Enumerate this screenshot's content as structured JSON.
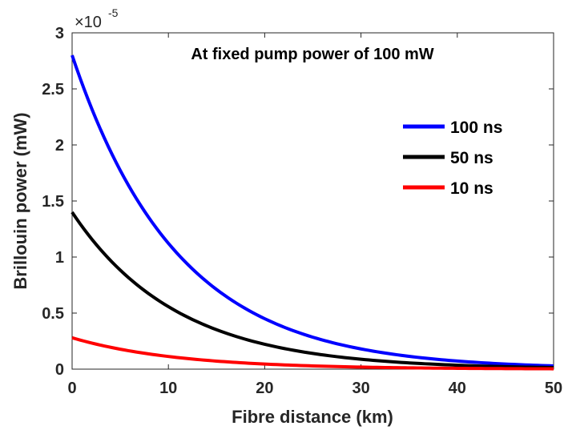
{
  "chart_data": {
    "type": "line",
    "annotation": "At fixed pump power of 100 mW",
    "xlabel": "Fibre distance (km)",
    "ylabel": "Brillouin power (mW)",
    "xlim": [
      0,
      50
    ],
    "ylim": [
      0,
      3
    ],
    "y_exponent_base": "×10",
    "y_exponent_power": "-5",
    "xticks": [
      "0",
      "10",
      "20",
      "30",
      "40",
      "50"
    ],
    "yticks": [
      "0",
      "0.5",
      "1",
      "1.5",
      "2",
      "2.5",
      "3"
    ],
    "grid": false,
    "legend_position": "right",
    "x": [
      0,
      5,
      10,
      15,
      20,
      25,
      30,
      35,
      40,
      45,
      50
    ],
    "series": [
      {
        "name": "100 ns",
        "color": "#0000ff",
        "values": [
          2.8,
          1.77,
          1.12,
          0.71,
          0.45,
          0.28,
          0.18,
          0.114,
          0.072,
          0.046,
          0.029
        ]
      },
      {
        "name": "50 ns",
        "color": "#000000",
        "values": [
          1.4,
          0.88,
          0.56,
          0.35,
          0.22,
          0.14,
          0.089,
          0.056,
          0.036,
          0.023,
          0.014
        ]
      },
      {
        "name": "10 ns",
        "color": "#ff0000",
        "values": [
          0.28,
          0.177,
          0.112,
          0.071,
          0.045,
          0.028,
          0.018,
          0.011,
          0.007,
          0.005,
          0.003
        ]
      }
    ]
  }
}
